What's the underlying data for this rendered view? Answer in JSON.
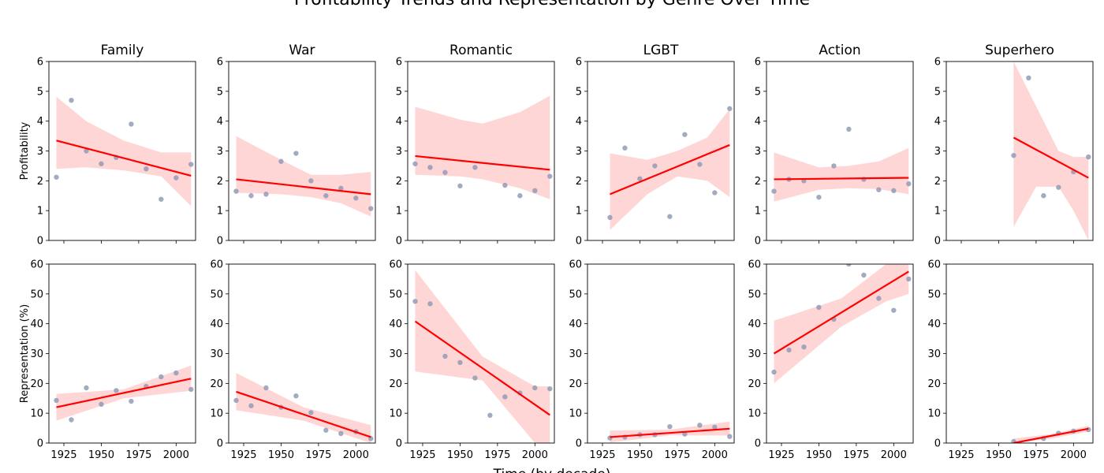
{
  "figure": {
    "title": "Profitability Trends and Representation by Genre Over Time",
    "xlabel": "Time (by decade)",
    "scatter_color": "#8c96b4",
    "line_color": "#ff0000",
    "band_color": "#ffcccc"
  },
  "chart_data": [
    {
      "type": "scatter",
      "panel": "Family Profitability",
      "title": "Family",
      "ylabel": "Profitability",
      "xlim": [
        1915,
        2013
      ],
      "ylim": [
        0,
        6
      ],
      "yticks": [
        0,
        1,
        2,
        3,
        4,
        5,
        6
      ],
      "x": [
        1920,
        1930,
        1940,
        1950,
        1960,
        1970,
        1980,
        1990,
        2000,
        2010
      ],
      "y": [
        2.12,
        4.7,
        3.0,
        2.57,
        2.78,
        3.9,
        2.4,
        1.38,
        2.1,
        2.55
      ],
      "fit": {
        "x": [
          1920,
          2010
        ],
        "y": [
          3.35,
          2.17
        ]
      },
      "band": {
        "x": [
          1920,
          1940,
          1965,
          1990,
          2010
        ],
        "upper": [
          4.82,
          4.0,
          3.35,
          2.95,
          2.95
        ],
        "lower": [
          2.4,
          2.45,
          2.35,
          2.15,
          1.15
        ]
      }
    },
    {
      "type": "scatter",
      "panel": "War Profitability",
      "title": "War",
      "ylabel": "",
      "xlim": [
        1915,
        2013
      ],
      "ylim": [
        0,
        6
      ],
      "yticks": [
        0,
        1,
        2,
        3,
        4,
        5,
        6
      ],
      "x": [
        1920,
        1930,
        1940,
        1950,
        1960,
        1970,
        1980,
        1990,
        2000,
        2010
      ],
      "y": [
        1.65,
        1.5,
        1.55,
        2.65,
        2.92,
        2.0,
        1.5,
        1.75,
        1.42,
        1.07
      ],
      "fit": {
        "x": [
          1920,
          2010
        ],
        "y": [
          2.05,
          1.55
        ]
      },
      "band": {
        "x": [
          1920,
          1950,
          1970,
          1990,
          2010
        ],
        "upper": [
          3.5,
          2.7,
          2.2,
          2.2,
          2.3
        ],
        "lower": [
          1.6,
          1.55,
          1.45,
          1.25,
          0.8
        ]
      }
    },
    {
      "type": "scatter",
      "panel": "Romantic Profitability",
      "title": "Romantic",
      "ylabel": "",
      "xlim": [
        1915,
        2013
      ],
      "ylim": [
        0,
        6
      ],
      "yticks": [
        0,
        1,
        2,
        3,
        4,
        5,
        6
      ],
      "x": [
        1920,
        1930,
        1940,
        1950,
        1960,
        1980,
        1990,
        2000,
        2010
      ],
      "y": [
        2.57,
        2.45,
        2.28,
        1.83,
        2.45,
        1.85,
        1.5,
        1.67,
        2.15
      ],
      "fit": {
        "x": [
          1920,
          2010
        ],
        "y": [
          2.83,
          2.37
        ]
      },
      "band": {
        "x": [
          1920,
          1950,
          1965,
          1990,
          2010
        ],
        "upper": [
          4.48,
          4.05,
          3.92,
          4.3,
          4.85
        ],
        "lower": [
          2.2,
          2.15,
          2.05,
          1.75,
          1.38
        ]
      }
    },
    {
      "type": "scatter",
      "panel": "LGBT Profitability",
      "title": "LGBT",
      "ylabel": "",
      "xlim": [
        1915,
        2013
      ],
      "ylim": [
        0,
        6
      ],
      "yticks": [
        0,
        1,
        2,
        3,
        4,
        5,
        6
      ],
      "x": [
        1930,
        1940,
        1950,
        1960,
        1970,
        1980,
        1990,
        2000,
        2010
      ],
      "y": [
        0.77,
        3.1,
        2.07,
        2.5,
        0.8,
        3.55,
        2.55,
        1.6,
        4.42
      ],
      "fit": {
        "x": [
          1930,
          2010
        ],
        "y": [
          1.55,
          3.2
        ]
      },
      "band": {
        "x": [
          1930,
          1955,
          1975,
          1995,
          2010
        ],
        "upper": [
          2.92,
          2.7,
          3.0,
          3.45,
          4.4
        ],
        "lower": [
          0.35,
          1.55,
          2.15,
          2.0,
          1.45
        ]
      }
    },
    {
      "type": "scatter",
      "panel": "Action Profitability",
      "title": "Action",
      "ylabel": "",
      "xlim": [
        1915,
        2013
      ],
      "ylim": [
        0,
        6
      ],
      "yticks": [
        0,
        1,
        2,
        3,
        4,
        5,
        6
      ],
      "x": [
        1920,
        1930,
        1940,
        1950,
        1960,
        1970,
        1980,
        1990,
        2000,
        2010
      ],
      "y": [
        1.65,
        2.05,
        2.0,
        1.45,
        2.5,
        3.73,
        2.05,
        1.7,
        1.67,
        1.9
      ],
      "fit": {
        "x": [
          1920,
          2010
        ],
        "y": [
          2.05,
          2.1
        ]
      },
      "band": {
        "x": [
          1920,
          1950,
          1970,
          1990,
          2010
        ],
        "upper": [
          2.95,
          2.45,
          2.5,
          2.65,
          3.1
        ],
        "lower": [
          1.3,
          1.7,
          1.75,
          1.72,
          1.55
        ]
      }
    },
    {
      "type": "scatter",
      "panel": "Superhero Profitability",
      "title": "Superhero",
      "ylabel": "",
      "xlim": [
        1915,
        2013
      ],
      "ylim": [
        0,
        6
      ],
      "yticks": [
        0,
        1,
        2,
        3,
        4,
        5,
        6
      ],
      "x": [
        1960,
        1970,
        1980,
        1990,
        2000,
        2010
      ],
      "y": [
        2.85,
        5.45,
        1.5,
        1.78,
        2.3,
        2.8
      ],
      "fit": {
        "x": [
          1960,
          2010
        ],
        "y": [
          3.45,
          2.1
        ]
      },
      "band": {
        "x": [
          1960,
          1975,
          1990,
          2000,
          2010
        ],
        "upper": [
          6.0,
          4.5,
          3.0,
          2.8,
          2.8
        ],
        "lower": [
          0.45,
          1.8,
          1.8,
          1.0,
          0.0
        ]
      }
    },
    {
      "type": "scatter",
      "panel": "Family Representation",
      "title": "",
      "ylabel": "Representation (%)",
      "xlim": [
        1915,
        2013
      ],
      "ylim": [
        0,
        60
      ],
      "yticks": [
        0,
        10,
        20,
        30,
        40,
        50,
        60
      ],
      "x": [
        1920,
        1930,
        1940,
        1950,
        1960,
        1970,
        1980,
        1990,
        2000,
        2010
      ],
      "y": [
        14.3,
        7.8,
        18.5,
        13.0,
        17.6,
        14.0,
        19.0,
        22.2,
        23.5,
        18.0
      ],
      "fit": {
        "x": [
          1920,
          2010
        ],
        "y": [
          12.0,
          21.6
        ]
      },
      "band": {
        "x": [
          1920,
          1965,
          2010
        ],
        "upper": [
          16.5,
          18.0,
          26.0
        ],
        "lower": [
          7.5,
          15.0,
          17.5
        ]
      }
    },
    {
      "type": "scatter",
      "panel": "War Representation",
      "title": "",
      "ylabel": "",
      "xlim": [
        1915,
        2013
      ],
      "ylim": [
        0,
        60
      ],
      "yticks": [
        0,
        10,
        20,
        30,
        40,
        50,
        60
      ],
      "x": [
        1920,
        1930,
        1940,
        1950,
        1960,
        1970,
        1980,
        1990,
        2000,
        2010
      ],
      "y": [
        14.3,
        12.5,
        18.5,
        12.0,
        15.8,
        10.2,
        4.3,
        3.2,
        3.8,
        1.5
      ],
      "fit": {
        "x": [
          1920,
          2010
        ],
        "y": [
          17.2,
          2.0
        ]
      },
      "band": {
        "x": [
          1920,
          1965,
          2010
        ],
        "upper": [
          23.5,
          12.0,
          6.0
        ],
        "lower": [
          11.0,
          7.5,
          0.0
        ]
      }
    },
    {
      "type": "scatter",
      "panel": "Romantic Representation",
      "title": "",
      "ylabel": "",
      "xlim": [
        1915,
        2013
      ],
      "ylim": [
        0,
        60
      ],
      "yticks": [
        0,
        10,
        20,
        30,
        40,
        50,
        60
      ],
      "x": [
        1920,
        1930,
        1940,
        1950,
        1960,
        1970,
        1980,
        1990,
        2000,
        2010
      ],
      "y": [
        47.5,
        46.7,
        29.1,
        27.0,
        21.8,
        9.3,
        15.5,
        16.8,
        18.5,
        18.2
      ],
      "fit": {
        "x": [
          1920,
          2010
        ],
        "y": [
          40.8,
          9.4
        ]
      },
      "band": {
        "x": [
          1920,
          1965,
          2000,
          2010
        ],
        "upper": [
          58.0,
          29.0,
          19.0,
          19.0
        ],
        "lower": [
          24.0,
          21.0,
          0.0,
          0.0
        ]
      }
    },
    {
      "type": "scatter",
      "panel": "LGBT Representation",
      "title": "",
      "ylabel": "",
      "xlim": [
        1915,
        2013
      ],
      "ylim": [
        0,
        60
      ],
      "yticks": [
        0,
        10,
        20,
        30,
        40,
        50,
        60
      ],
      "x": [
        1930,
        1940,
        1950,
        1960,
        1970,
        1980,
        1990,
        2000,
        2010
      ],
      "y": [
        1.7,
        2.0,
        2.8,
        2.8,
        5.5,
        3.0,
        6.0,
        5.3,
        2.2
      ],
      "fit": {
        "x": [
          1930,
          2010
        ],
        "y": [
          2.0,
          4.8
        ]
      },
      "band": {
        "x": [
          1930,
          1970,
          2010
        ],
        "upper": [
          4.2,
          4.5,
          7.2
        ],
        "lower": [
          0.2,
          2.6,
          2.5
        ]
      }
    },
    {
      "type": "scatter",
      "panel": "Action Representation",
      "title": "",
      "ylabel": "",
      "xlim": [
        1915,
        2013
      ],
      "ylim": [
        0,
        60
      ],
      "yticks": [
        0,
        10,
        20,
        30,
        40,
        50,
        60
      ],
      "x": [
        1920,
        1930,
        1940,
        1950,
        1960,
        1970,
        1980,
        1990,
        2000,
        2010
      ],
      "y": [
        23.8,
        31.2,
        32.2,
        45.5,
        41.5,
        60.0,
        56.3,
        48.5,
        44.5,
        55.0
      ],
      "fit": {
        "x": [
          1920,
          2010
        ],
        "y": [
          30.0,
          57.5
        ]
      },
      "band": {
        "x": [
          1920,
          1965,
          1995,
          2010
        ],
        "upper": [
          41.0,
          48.5,
          60.0,
          60.0
        ],
        "lower": [
          20.0,
          39.0,
          47.5,
          50.0
        ]
      }
    },
    {
      "type": "scatter",
      "panel": "Superhero Representation",
      "title": "",
      "ylabel": "",
      "xlim": [
        1915,
        2013
      ],
      "ylim": [
        0,
        60
      ],
      "yticks": [
        0,
        10,
        20,
        30,
        40,
        50,
        60
      ],
      "x": [
        1960,
        1980,
        1990,
        2000,
        2010
      ],
      "y": [
        0.5,
        1.5,
        3.3,
        4.0,
        4.5
      ],
      "fit": {
        "x": [
          1960,
          2010
        ],
        "y": [
          0.0,
          4.8
        ]
      },
      "band": {
        "x": [
          1960,
          1985,
          2010
        ],
        "upper": [
          1.5,
          3.0,
          5.8
        ],
        "lower": [
          0.0,
          1.5,
          3.8
        ]
      }
    }
  ],
  "x_ticks": [
    1925,
    1950,
    1975,
    2000
  ]
}
